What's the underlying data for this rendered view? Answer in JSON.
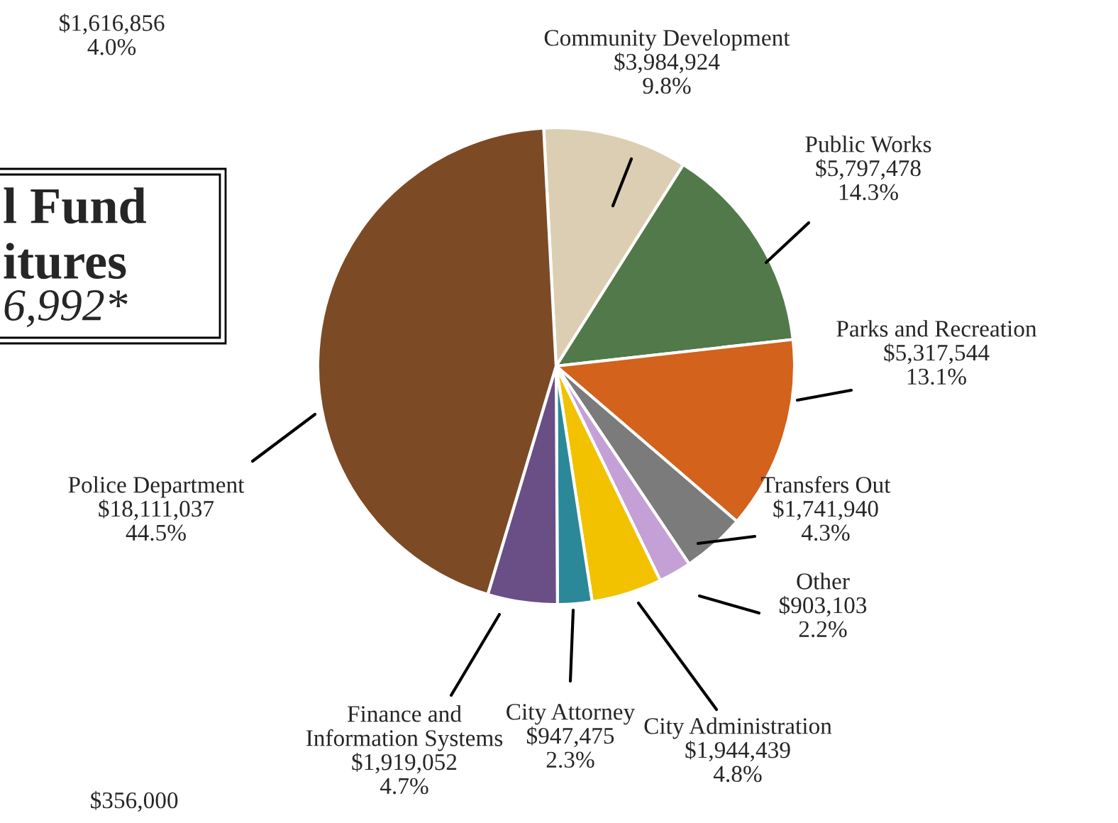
{
  "chart_data": {
    "type": "pie",
    "title": "l Fund\nitures",
    "subtitle": "6,992*",
    "categories": [
      "Community Development",
      "Public Works",
      "Parks and Recreation",
      "Transfers Out",
      "Other",
      "City Administration",
      "City Attorney",
      "Finance and\nInformation Systems",
      "Police Department"
    ],
    "values": [
      3984924,
      5797478,
      5317544,
      1741940,
      903103,
      1944439,
      947475,
      1919052,
      18111037
    ],
    "value_labels": [
      "$3,984,924\n9.8%",
      "$5,797,478\n14.3%",
      "$5,317,544\n13.1%",
      "$1,741,940\n4.3%",
      "$903,103\n2.2%",
      "$1,944,439\n4.8%",
      "$947,475\n2.3%",
      "$1,919,052\n4.7%",
      "$18,111,037\n44.5%"
    ],
    "colors": [
      "#dcceb2",
      "#52794a",
      "#d2621c",
      "#7b7b7b",
      "#c4a0d6",
      "#f2c200",
      "#2a8898",
      "#6a4e86",
      "#7c4a24"
    ],
    "annotations": [
      "$1,616,856\n4.0%",
      "$356,000"
    ],
    "legend": false
  }
}
